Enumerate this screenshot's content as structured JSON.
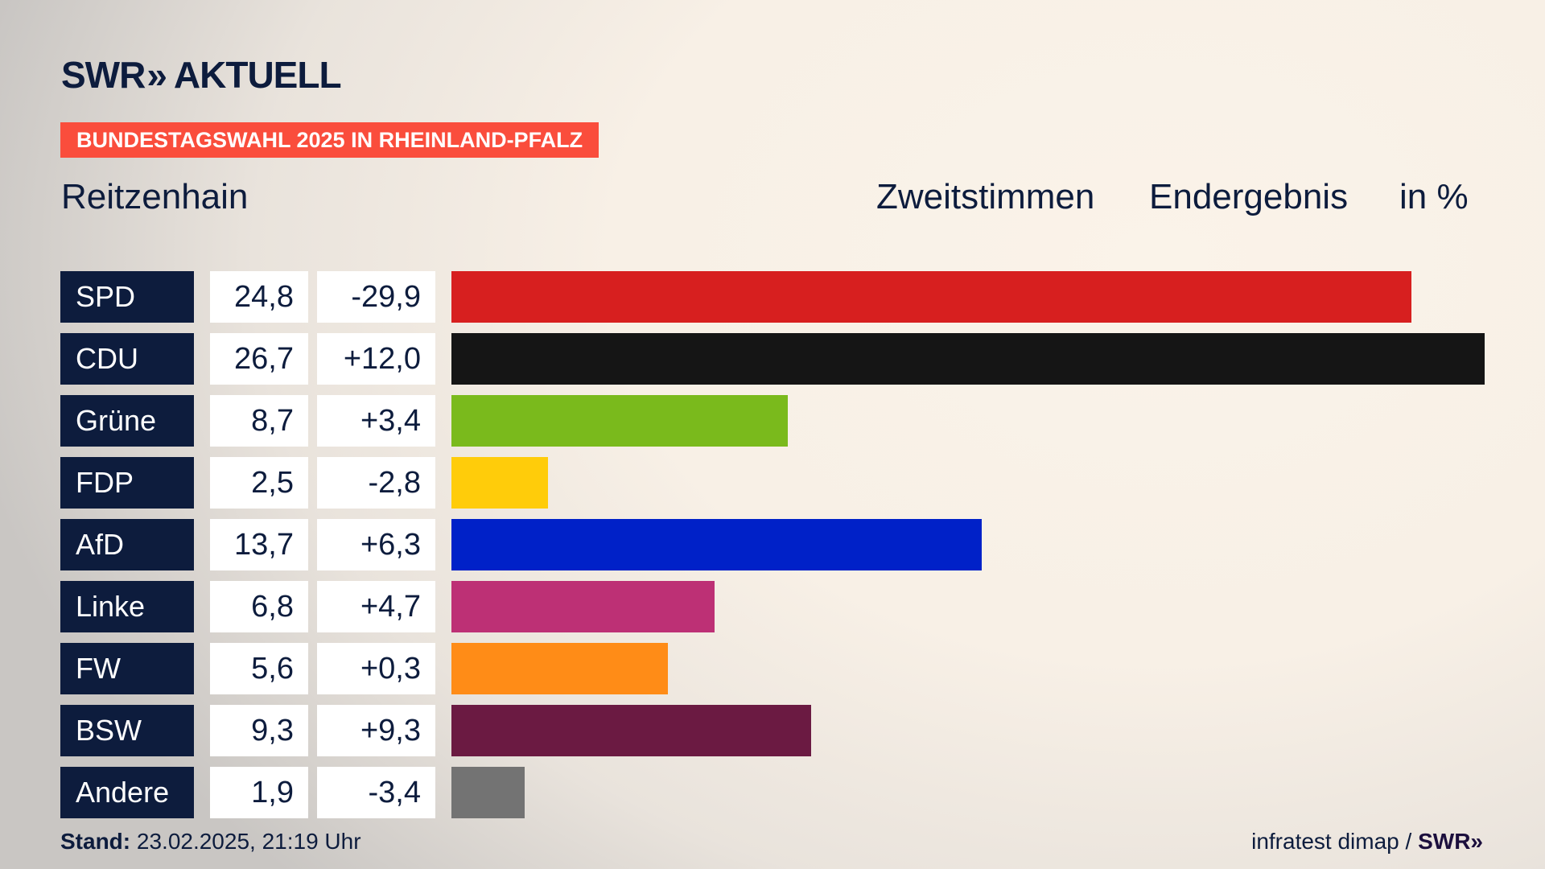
{
  "logo": {
    "brand": "SWR",
    "chevrons": "»",
    "name": "AKTUELL"
  },
  "banner": "BUNDESTAGSWAHL 2025 IN RHEINLAND-PFALZ",
  "chart_data": {
    "type": "bar",
    "title": "Reitzenhain",
    "header": {
      "vote_type": "Zweitstimmen",
      "status": "Endergebnis",
      "unit": "in %"
    },
    "categories": [
      "SPD",
      "CDU",
      "Grüne",
      "FDP",
      "AfD",
      "Linke",
      "FW",
      "BSW",
      "Andere"
    ],
    "values": [
      24.8,
      26.7,
      8.7,
      2.5,
      13.7,
      6.8,
      5.6,
      9.3,
      1.9
    ],
    "value_labels": [
      "24,8",
      "26,7",
      "8,7",
      "2,5",
      "13,7",
      "6,8",
      "5,6",
      "9,3",
      "1,9"
    ],
    "diff_labels": [
      "-29,9",
      "+12,0",
      "+3,4",
      "-2,8",
      "+6,3",
      "+4,7",
      "+0,3",
      "+9,3",
      "-3,4"
    ],
    "diffs": [
      -29.9,
      12.0,
      3.4,
      -2.8,
      6.3,
      4.7,
      0.3,
      9.3,
      -3.4
    ],
    "colors": [
      "#d71f1f",
      "#151515",
      "#7aba1c",
      "#ffcc0a",
      "#0021c8",
      "#bd3075",
      "#ff8c17",
      "#6b1a42",
      "#737373"
    ],
    "xlim": [
      0,
      26.7
    ]
  },
  "footer": {
    "stand_label": "Stand:",
    "stand_value": "23.02.2025, 21:19 Uhr",
    "source": "infratest dimap /",
    "source_brand": "SWR»"
  }
}
